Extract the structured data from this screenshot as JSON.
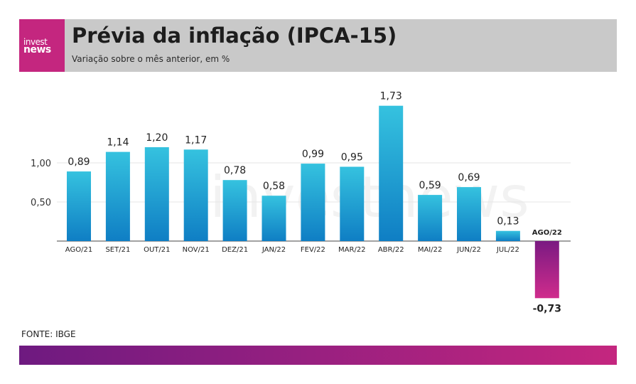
{
  "header": {
    "title": "Prévia da inflação (IPCA-15)",
    "subtitle": "Variação sobre o mês anterior, em %"
  },
  "logo": {
    "top": "invest",
    "bottom": "news"
  },
  "watermark": "investnews",
  "footer": {
    "source": "FONTE: IBGE"
  },
  "colors": {
    "bar_top": "#35c2df",
    "bar_bottom": "#0f7ec4",
    "negative_top": "#7a1a82",
    "negative_bottom": "#d02c8c",
    "header_bg": "#c9c9c9",
    "logo_bg": "#c4267f"
  },
  "chart_data": {
    "type": "bar",
    "title": "Prévia da inflação (IPCA-15)",
    "subtitle": "Variação sobre o mês anterior, em %",
    "categories": [
      "AGO/21",
      "SET/21",
      "OUT/21",
      "NOV/21",
      "DEZ/21",
      "JAN/22",
      "FEV/22",
      "MAR/22",
      "ABR/22",
      "MAI/22",
      "JUN/22",
      "JUL/22",
      "AGO/22"
    ],
    "values": [
      0.89,
      1.14,
      1.2,
      1.17,
      0.78,
      0.58,
      0.99,
      0.95,
      1.73,
      0.59,
      0.69,
      0.13,
      -0.73
    ],
    "value_labels": [
      "0,89",
      "1,14",
      "1,20",
      "1,17",
      "0,78",
      "0,58",
      "0,99",
      "0,95",
      "1,73",
      "0,59",
      "0,69",
      "0,13",
      "-0,73"
    ],
    "yticks": [
      0.5,
      1.0
    ],
    "ytick_labels": [
      "0,50",
      "1,00"
    ],
    "ylim": [
      -0.73,
      1.73
    ],
    "grid": true
  }
}
